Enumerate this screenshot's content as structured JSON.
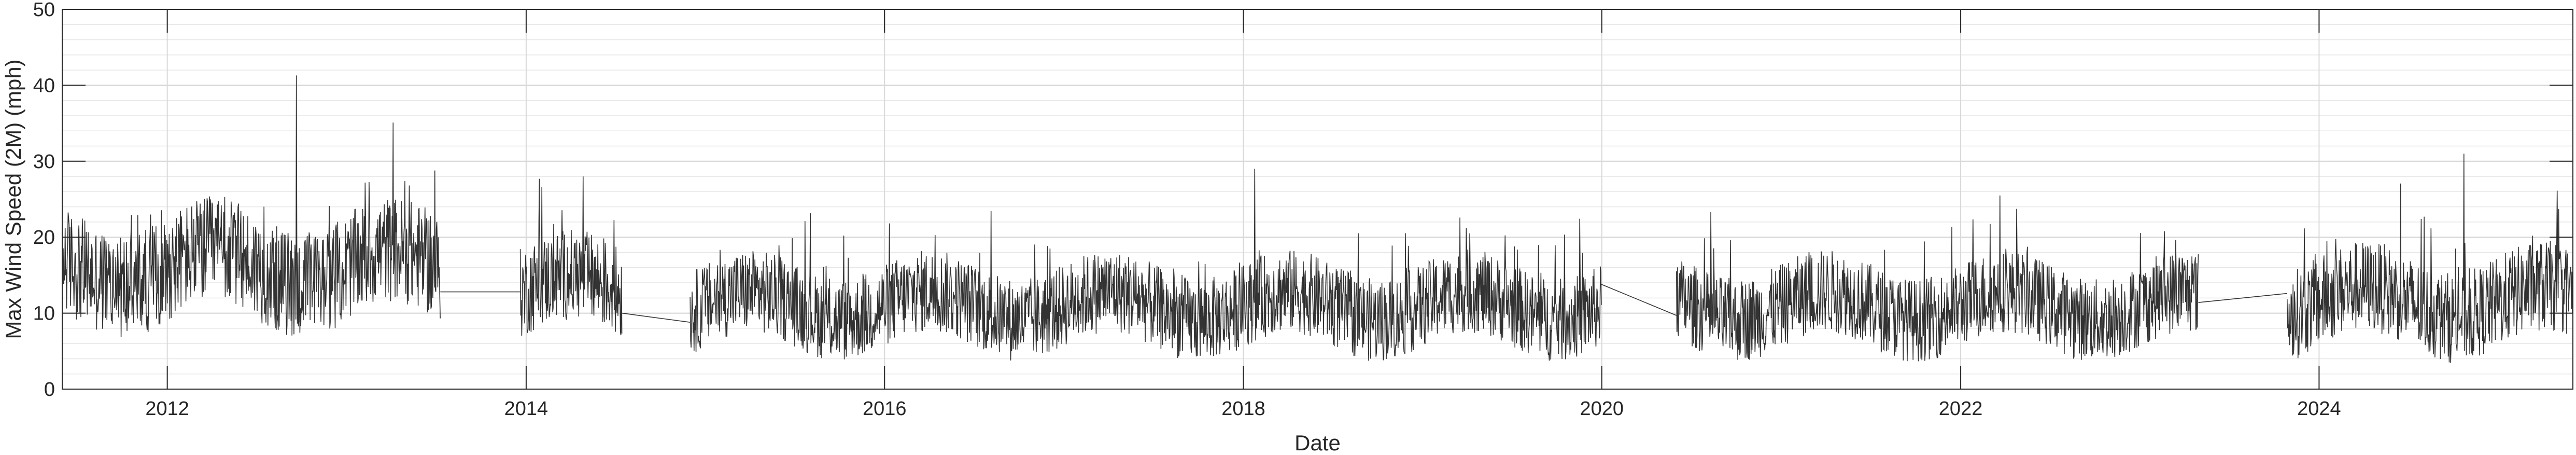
{
  "chart_data": {
    "type": "line",
    "title": "",
    "xlabel": "Date",
    "ylabel": "Max Wind Speed (2M) (mph)",
    "ylim": [
      0,
      50
    ],
    "xlim": [
      "2011-06-01",
      "2025-06-01"
    ],
    "yticks": [
      0,
      10,
      20,
      30,
      40,
      50
    ],
    "xticks": [
      "2012",
      "2014",
      "2016",
      "2018",
      "2020",
      "2022",
      "2024"
    ],
    "grid": true,
    "minor_grid": true,
    "series": [
      {
        "color": "#333333",
        "segments": [
          {
            "start": "2011-06-01",
            "end": "2013-07-10",
            "mean": 16,
            "amp": 7,
            "peak": 41.3
          },
          {
            "start": "2013-12-20",
            "end": "2014-07-15",
            "mean": 13,
            "amp": 6,
            "peak": 28
          },
          {
            "start": "2014-12-01",
            "end": "2019-12-31",
            "mean": 11,
            "amp": 5.5,
            "peak": 29
          },
          {
            "start": "2020-06-01",
            "end": "2023-04-30",
            "mean": 11,
            "amp": 5.5,
            "peak": 25.5
          },
          {
            "start": "2023-10-28",
            "end": "2025-06-01",
            "mean": 11.5,
            "amp": 6,
            "peak": 31
          }
        ],
        "gap_connectors": [
          {
            "from": [
              "2013-07-10",
              12.8
            ],
            "to": [
              "2013-12-20",
              12.8
            ]
          },
          {
            "from": [
              "2014-07-15",
              10.0
            ],
            "to": [
              "2014-12-01",
              8.8
            ]
          },
          {
            "from": [
              "2019-12-31",
              13.8
            ],
            "to": [
              "2020-06-01",
              9.7
            ]
          },
          {
            "from": [
              "2023-04-30",
              11.4
            ],
            "to": [
              "2023-10-28",
              12.6
            ]
          }
        ]
      }
    ]
  }
}
